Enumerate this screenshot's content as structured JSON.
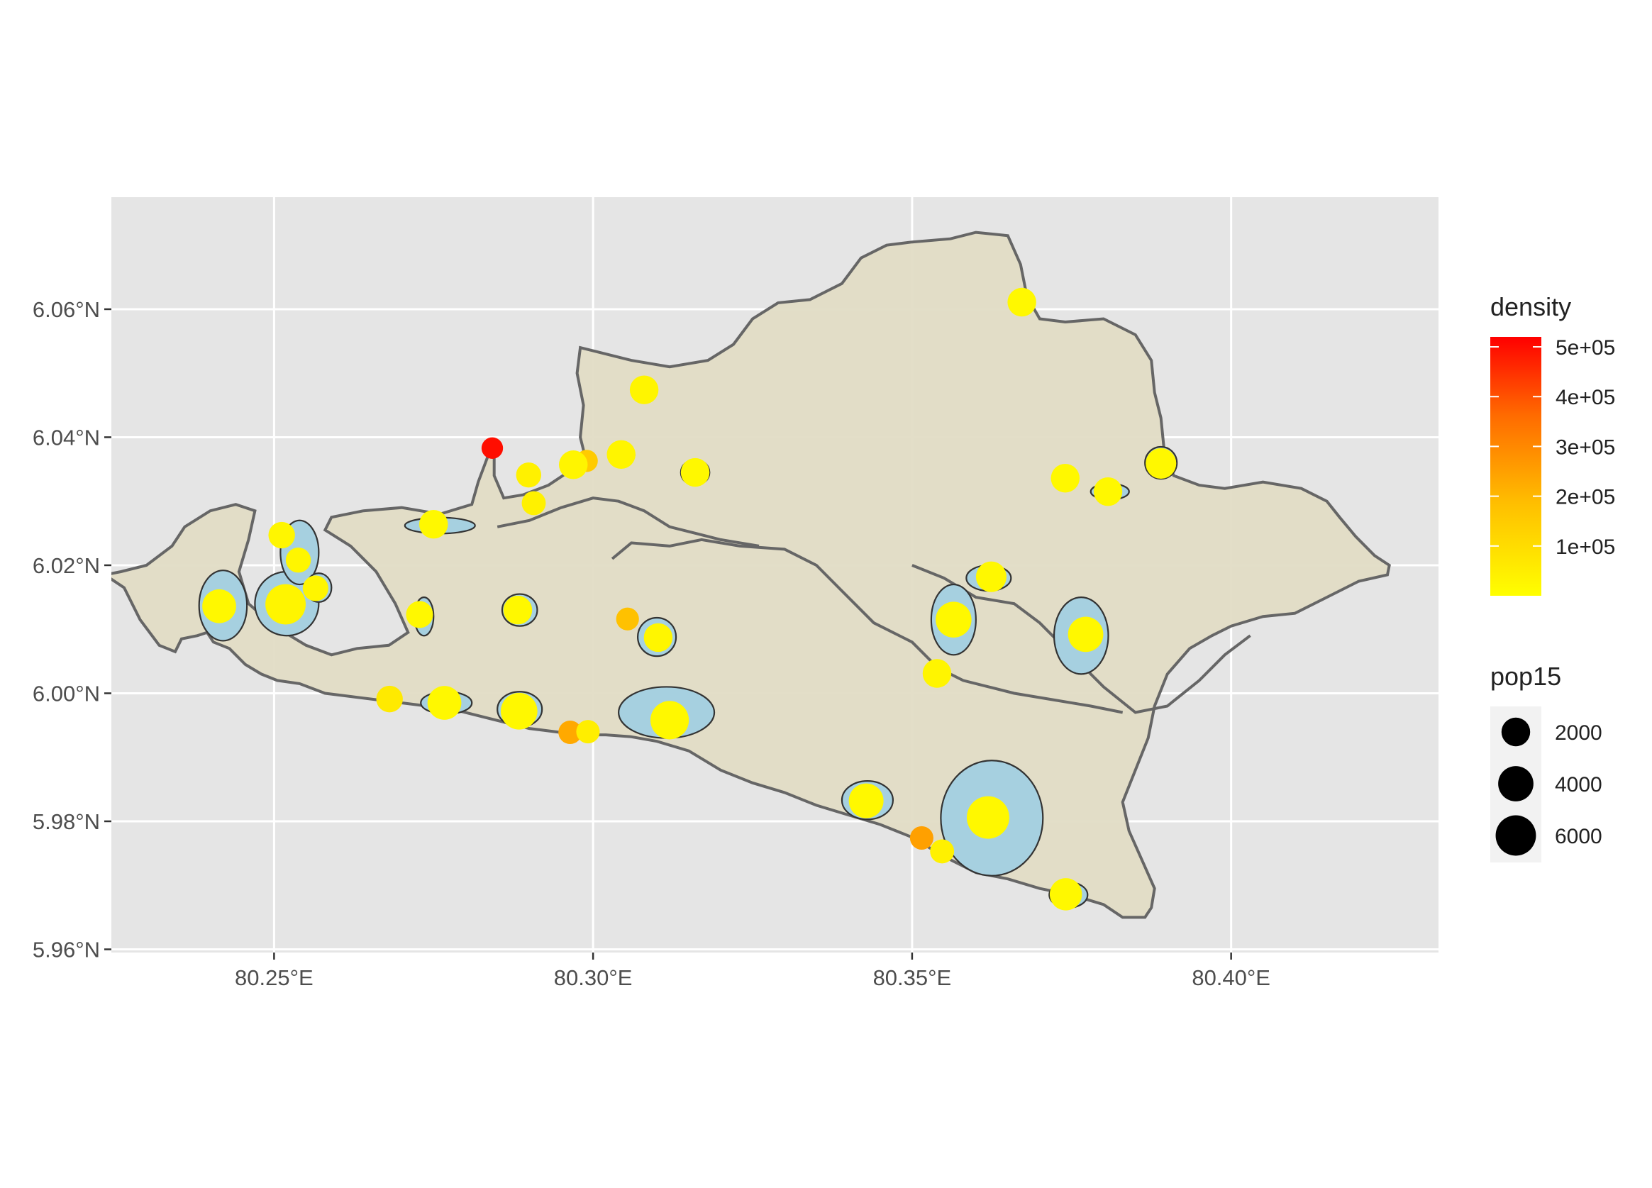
{
  "chart_data": {
    "type": "map",
    "title": "",
    "xlabel": "",
    "ylabel": "",
    "xlim": [
      80.2245,
      80.4325
    ],
    "ylim": [
      5.9595,
      6.0775
    ],
    "x_ticks": [
      {
        "value": 80.25,
        "label": "80.25°E"
      },
      {
        "value": 80.3,
        "label": "80.30°E"
      },
      {
        "value": 80.35,
        "label": "80.35°E"
      },
      {
        "value": 80.4,
        "label": "80.40°E"
      }
    ],
    "y_ticks": [
      {
        "value": 5.96,
        "label": "5.96°N"
      },
      {
        "value": 5.98,
        "label": "5.98°N"
      },
      {
        "value": 6.0,
        "label": "6.00°N"
      },
      {
        "value": 6.02,
        "label": "6.02°N"
      },
      {
        "value": 6.04,
        "label": "6.04°N"
      },
      {
        "value": 6.06,
        "label": "6.06°N"
      }
    ],
    "grid": true,
    "colors": {
      "panel": "#e5e5e5",
      "grid": "#ffffff",
      "land": "#e1dcc5",
      "land_border": "#666666",
      "urban": "#a6d0e0",
      "urban_border": "#333333",
      "density_low": "#ffff00",
      "density_high": "#ff0000"
    },
    "land_outline": [
      [
        80.2235,
        6.0185
      ],
      [
        80.2265,
        6.0165
      ],
      [
        80.229,
        6.0115
      ],
      [
        80.232,
        6.0075
      ],
      [
        80.2345,
        6.0065
      ],
      [
        80.2355,
        6.0085
      ],
      [
        80.238,
        6.009
      ],
      [
        80.2395,
        6.0095
      ],
      [
        80.2405,
        6.008
      ],
      [
        80.243,
        6.007
      ],
      [
        80.2455,
        6.0045
      ],
      [
        80.248,
        6.003
      ],
      [
        80.2505,
        6.002
      ],
      [
        80.254,
        6.0015
      ],
      [
        80.258,
        6.0
      ],
      [
        80.262,
        5.9995
      ],
      [
        80.266,
        5.999
      ],
      [
        80.27,
        5.9985
      ],
      [
        80.274,
        5.998
      ],
      [
        80.278,
        5.9975
      ],
      [
        80.282,
        5.9965
      ],
      [
        80.286,
        5.9955
      ],
      [
        80.29,
        5.9945
      ],
      [
        80.294,
        5.994
      ],
      [
        80.298,
        5.9935
      ],
      [
        80.302,
        5.9935
      ],
      [
        80.306,
        5.9932
      ],
      [
        80.31,
        5.9925
      ],
      [
        80.315,
        5.991
      ],
      [
        80.32,
        5.988
      ],
      [
        80.325,
        5.986
      ],
      [
        80.33,
        5.9845
      ],
      [
        80.335,
        5.9825
      ],
      [
        80.34,
        5.981
      ],
      [
        80.345,
        5.9795
      ],
      [
        80.35,
        5.9775
      ],
      [
        80.355,
        5.9745
      ],
      [
        80.36,
        5.972
      ],
      [
        80.365,
        5.971
      ],
      [
        80.37,
        5.9695
      ],
      [
        80.375,
        5.9685
      ],
      [
        80.38,
        5.967
      ],
      [
        80.383,
        5.965
      ],
      [
        80.3865,
        5.965
      ],
      [
        80.3875,
        5.9665
      ],
      [
        80.388,
        5.9695
      ],
      [
        80.386,
        5.974
      ],
      [
        80.384,
        5.9785
      ],
      [
        80.383,
        5.983
      ],
      [
        80.385,
        5.988
      ],
      [
        80.387,
        5.993
      ],
      [
        80.388,
        5.998
      ],
      [
        80.39,
        6.003
      ],
      [
        80.3935,
        6.007
      ],
      [
        80.397,
        6.009
      ],
      [
        80.4,
        6.0105
      ],
      [
        80.405,
        6.012
      ],
      [
        80.41,
        6.0125
      ],
      [
        80.415,
        6.015
      ],
      [
        80.42,
        6.0175
      ],
      [
        80.4245,
        6.0185
      ],
      [
        80.4248,
        6.02
      ],
      [
        80.4225,
        6.0215
      ],
      [
        80.4195,
        6.0245
      ],
      [
        80.417,
        6.0275
      ],
      [
        80.415,
        6.03
      ],
      [
        80.411,
        6.032
      ],
      [
        80.405,
        6.033
      ],
      [
        80.399,
        6.032
      ],
      [
        80.395,
        6.0325
      ],
      [
        80.391,
        6.034
      ],
      [
        80.3895,
        6.038
      ],
      [
        80.389,
        6.043
      ],
      [
        80.388,
        6.047
      ],
      [
        80.3875,
        6.052
      ],
      [
        80.385,
        6.056
      ],
      [
        80.38,
        6.0585
      ],
      [
        80.374,
        6.058
      ],
      [
        80.37,
        6.0585
      ],
      [
        80.368,
        6.062
      ],
      [
        80.367,
        6.067
      ],
      [
        80.365,
        6.0715
      ],
      [
        80.36,
        6.072
      ],
      [
        80.356,
        6.071
      ],
      [
        80.35,
        6.0705
      ],
      [
        80.346,
        6.07
      ],
      [
        80.342,
        6.068
      ],
      [
        80.339,
        6.064
      ],
      [
        80.334,
        6.0615
      ],
      [
        80.329,
        6.061
      ],
      [
        80.325,
        6.0585
      ],
      [
        80.322,
        6.0545
      ],
      [
        80.318,
        6.052
      ],
      [
        80.312,
        6.051
      ],
      [
        80.306,
        6.052
      ],
      [
        80.3,
        6.0535
      ],
      [
        80.298,
        6.054
      ],
      [
        80.2975,
        6.05
      ],
      [
        80.2985,
        6.045
      ],
      [
        80.298,
        6.04
      ],
      [
        80.299,
        6.036
      ],
      [
        80.296,
        6.0345
      ],
      [
        80.293,
        6.0325
      ],
      [
        80.289,
        6.031
      ],
      [
        80.286,
        6.0305
      ],
      [
        80.2845,
        6.034
      ],
      [
        80.2845,
        6.0385
      ],
      [
        80.2835,
        6.037
      ],
      [
        80.282,
        6.033
      ],
      [
        80.281,
        6.0295
      ],
      [
        80.276,
        6.028
      ],
      [
        80.27,
        6.029
      ],
      [
        80.264,
        6.0285
      ],
      [
        80.259,
        6.0275
      ],
      [
        80.258,
        6.0255
      ],
      [
        80.262,
        6.023
      ],
      [
        80.266,
        6.019
      ],
      [
        80.269,
        6.014
      ],
      [
        80.271,
        6.0095
      ],
      [
        80.268,
        6.0075
      ],
      [
        80.263,
        6.007
      ],
      [
        80.259,
        6.006
      ],
      [
        80.255,
        6.0075
      ],
      [
        80.25,
        6.0105
      ],
      [
        80.246,
        6.014
      ],
      [
        80.2445,
        6.019
      ],
      [
        80.246,
        6.024
      ],
      [
        80.247,
        6.0285
      ],
      [
        80.244,
        6.0295
      ],
      [
        80.24,
        6.0285
      ],
      [
        80.236,
        6.026
      ],
      [
        80.234,
        6.023
      ],
      [
        80.23,
        6.02
      ],
      [
        80.226,
        6.019
      ],
      [
        80.2235,
        6.0185
      ]
    ],
    "internal_boundaries": [
      [
        [
          80.303,
          6.021
        ],
        [
          80.306,
          6.0235
        ],
        [
          80.312,
          6.023
        ],
        [
          80.317,
          6.024
        ],
        [
          80.323,
          6.023
        ],
        [
          80.33,
          6.0225
        ],
        [
          80.335,
          6.02
        ],
        [
          80.339,
          6.016
        ],
        [
          80.344,
          6.011
        ],
        [
          80.35,
          6.008
        ],
        [
          80.354,
          6.004
        ],
        [
          80.358,
          6.002
        ],
        [
          80.362,
          6.001
        ],
        [
          80.366,
          6.0
        ],
        [
          80.372,
          5.999
        ],
        [
          80.378,
          5.998
        ],
        [
          80.383,
          5.997
        ]
      ],
      [
        [
          80.35,
          6.02
        ],
        [
          80.355,
          6.018
        ],
        [
          80.36,
          6.015
        ],
        [
          80.366,
          6.014
        ],
        [
          80.37,
          6.011
        ],
        [
          80.375,
          6.006
        ],
        [
          80.38,
          6.001
        ],
        [
          80.385,
          5.997
        ],
        [
          80.39,
          5.998
        ],
        [
          80.395,
          6.002
        ],
        [
          80.399,
          6.006
        ],
        [
          80.403,
          6.009
        ]
      ],
      [
        [
          80.285,
          6.026
        ],
        [
          80.29,
          6.027
        ],
        [
          80.295,
          6.029
        ],
        [
          80.3,
          6.0305
        ],
        [
          80.304,
          6.03
        ],
        [
          80.308,
          6.0285
        ],
        [
          80.312,
          6.026
        ],
        [
          80.316,
          6.025
        ],
        [
          80.32,
          6.024
        ],
        [
          80.326,
          6.023
        ]
      ]
    ],
    "urban_areas": [
      {
        "center": [
          80.242,
          6.0137
        ],
        "size": [
          0.0075,
          0.011
        ]
      },
      {
        "center": [
          80.252,
          6.014
        ],
        "size": [
          0.01,
          0.01
        ]
      },
      {
        "center": [
          80.254,
          6.022
        ],
        "size": [
          0.006,
          0.01
        ]
      },
      {
        "center": [
          80.257,
          6.0165
        ],
        "size": [
          0.004,
          0.0045
        ]
      },
      {
        "center": [
          80.276,
          6.0262
        ],
        "size": [
          0.011,
          0.0025
        ]
      },
      {
        "center": [
          80.2735,
          6.012
        ],
        "size": [
          0.003,
          0.006
        ]
      },
      {
        "center": [
          80.2885,
          6.013
        ],
        "size": [
          0.0055,
          0.005
        ]
      },
      {
        "center": [
          80.277,
          5.9985
        ],
        "size": [
          0.008,
          0.0035
        ]
      },
      {
        "center": [
          80.2885,
          5.9975
        ],
        "size": [
          0.007,
          0.0055
        ]
      },
      {
        "center": [
          80.308,
          6.0475
        ],
        "size": [
          0.0035,
          0.002
        ]
      },
      {
        "center": [
          80.3045,
          6.0372
        ],
        "size": [
          0.004,
          0.0025
        ]
      },
      {
        "center": [
          80.316,
          6.0345
        ],
        "size": [
          0.0045,
          0.004
        ]
      },
      {
        "center": [
          80.31,
          6.0088
        ],
        "size": [
          0.006,
          0.006
        ]
      },
      {
        "center": [
          80.3115,
          5.997
        ],
        "size": [
          0.015,
          0.008
        ]
      },
      {
        "center": [
          80.343,
          5.9833
        ],
        "size": [
          0.008,
          0.006
        ]
      },
      {
        "center": [
          80.3625,
          5.9805
        ],
        "size": [
          0.016,
          0.018
        ]
      },
      {
        "center": [
          80.3745,
          5.9685
        ],
        "size": [
          0.006,
          0.004
        ]
      },
      {
        "center": [
          80.3565,
          6.0115
        ],
        "size": [
          0.007,
          0.011
        ]
      },
      {
        "center": [
          80.354,
          6.003
        ],
        "size": [
          0.003,
          0.003
        ]
      },
      {
        "center": [
          80.362,
          6.018
        ],
        "size": [
          0.007,
          0.004
        ]
      },
      {
        "center": [
          80.3765,
          6.009
        ],
        "size": [
          0.0085,
          0.012
        ]
      },
      {
        "center": [
          80.374,
          6.0335
        ],
        "size": [
          0.004,
          0.0025
        ]
      },
      {
        "center": [
          80.381,
          6.0315
        ],
        "size": [
          0.006,
          0.0025
        ]
      },
      {
        "center": [
          80.389,
          6.036
        ],
        "size": [
          0.005,
          0.005
        ]
      },
      {
        "center": [
          80.367,
          6.061
        ],
        "size": [
          0.0035,
          0.0035
        ]
      }
    ],
    "points": [
      {
        "lon": 80.2842,
        "lat": 6.0383,
        "density": 500000,
        "pop15": 600
      },
      {
        "lon": 80.2964,
        "lat": 5.9939,
        "density": 230000,
        "pop15": 900
      },
      {
        "lon": 80.3515,
        "lat": 5.9774,
        "density": 250000,
        "pop15": 900
      },
      {
        "lon": 80.3054,
        "lat": 6.0116,
        "density": 180000,
        "pop15": 800
      },
      {
        "lon": 80.299,
        "lat": 6.0363,
        "density": 150000,
        "pop15": 700
      },
      {
        "lon": 80.2414,
        "lat": 6.0136,
        "density": 20000,
        "pop15": 3500
      },
      {
        "lon": 80.2518,
        "lat": 6.0139,
        "density": 30000,
        "pop15": 6000
      },
      {
        "lon": 80.2512,
        "lat": 6.0247,
        "density": 25000,
        "pop15": 1500
      },
      {
        "lon": 80.2538,
        "lat": 6.0208,
        "density": 25000,
        "pop15": 1200
      },
      {
        "lon": 80.2565,
        "lat": 6.0164,
        "density": 25000,
        "pop15": 1300
      },
      {
        "lon": 80.275,
        "lat": 6.0264,
        "density": 20000,
        "pop15": 2000
      },
      {
        "lon": 80.2728,
        "lat": 6.0123,
        "density": 20000,
        "pop15": 1600
      },
      {
        "lon": 80.2899,
        "lat": 6.0341,
        "density": 40000,
        "pop15": 1200
      },
      {
        "lon": 80.2907,
        "lat": 6.0297,
        "density": 40000,
        "pop15": 1000
      },
      {
        "lon": 80.2969,
        "lat": 6.0357,
        "density": 30000,
        "pop15": 2000
      },
      {
        "lon": 80.3044,
        "lat": 6.0373,
        "density": 30000,
        "pop15": 2000
      },
      {
        "lon": 80.308,
        "lat": 6.0474,
        "density": 30000,
        "pop15": 2000
      },
      {
        "lon": 80.316,
        "lat": 6.0345,
        "density": 20000,
        "pop15": 2000
      },
      {
        "lon": 80.2882,
        "lat": 6.013,
        "density": 20000,
        "pop15": 2000
      },
      {
        "lon": 80.3102,
        "lat": 6.0087,
        "density": 25000,
        "pop15": 2000
      },
      {
        "lon": 80.2681,
        "lat": 5.9991,
        "density": 60000,
        "pop15": 1500
      },
      {
        "lon": 80.2767,
        "lat": 5.9985,
        "density": 20000,
        "pop15": 3500
      },
      {
        "lon": 80.2884,
        "lat": 5.9972,
        "density": 20000,
        "pop15": 4500
      },
      {
        "lon": 80.2992,
        "lat": 5.994,
        "density": 50000,
        "pop15": 900
      },
      {
        "lon": 80.312,
        "lat": 5.9958,
        "density": 20000,
        "pop15": 5200
      },
      {
        "lon": 80.3428,
        "lat": 5.9832,
        "density": 20000,
        "pop15": 3800
      },
      {
        "lon": 80.3619,
        "lat": 5.9806,
        "density": 20000,
        "pop15": 7000
      },
      {
        "lon": 80.3547,
        "lat": 5.9753,
        "density": 40000,
        "pop15": 1000
      },
      {
        "lon": 80.3741,
        "lat": 5.9686,
        "density": 20000,
        "pop15": 3000
      },
      {
        "lon": 80.3565,
        "lat": 6.0115,
        "density": 20000,
        "pop15": 4200
      },
      {
        "lon": 80.3539,
        "lat": 6.0031,
        "density": 30000,
        "pop15": 2000
      },
      {
        "lon": 80.3624,
        "lat": 6.0182,
        "density": 20000,
        "pop15": 2500
      },
      {
        "lon": 80.3772,
        "lat": 6.0092,
        "density": 20000,
        "pop15": 4000
      },
      {
        "lon": 80.374,
        "lat": 6.0336,
        "density": 20000,
        "pop15": 2000
      },
      {
        "lon": 80.3807,
        "lat": 6.0315,
        "density": 20000,
        "pop15": 2000
      },
      {
        "lon": 80.389,
        "lat": 6.0359,
        "density": 20000,
        "pop15": 2500
      },
      {
        "lon": 80.3672,
        "lat": 6.0611,
        "density": 20000,
        "pop15": 2000
      }
    ],
    "legend": {
      "placement": "right",
      "density": {
        "title": "density",
        "min": 0,
        "max": 520000,
        "ticks": [
          {
            "value": 100000,
            "label": "1e+05"
          },
          {
            "value": 200000,
            "label": "2e+05"
          },
          {
            "value": 300000,
            "label": "3e+05"
          },
          {
            "value": 400000,
            "label": "4e+05"
          },
          {
            "value": 500000,
            "label": "5e+05"
          }
        ]
      },
      "pop15": {
        "title": "pop15",
        "entries": [
          {
            "value": 2000,
            "label": "2000"
          },
          {
            "value": 4000,
            "label": "4000"
          },
          {
            "value": 6000,
            "label": "6000"
          }
        ]
      }
    }
  }
}
